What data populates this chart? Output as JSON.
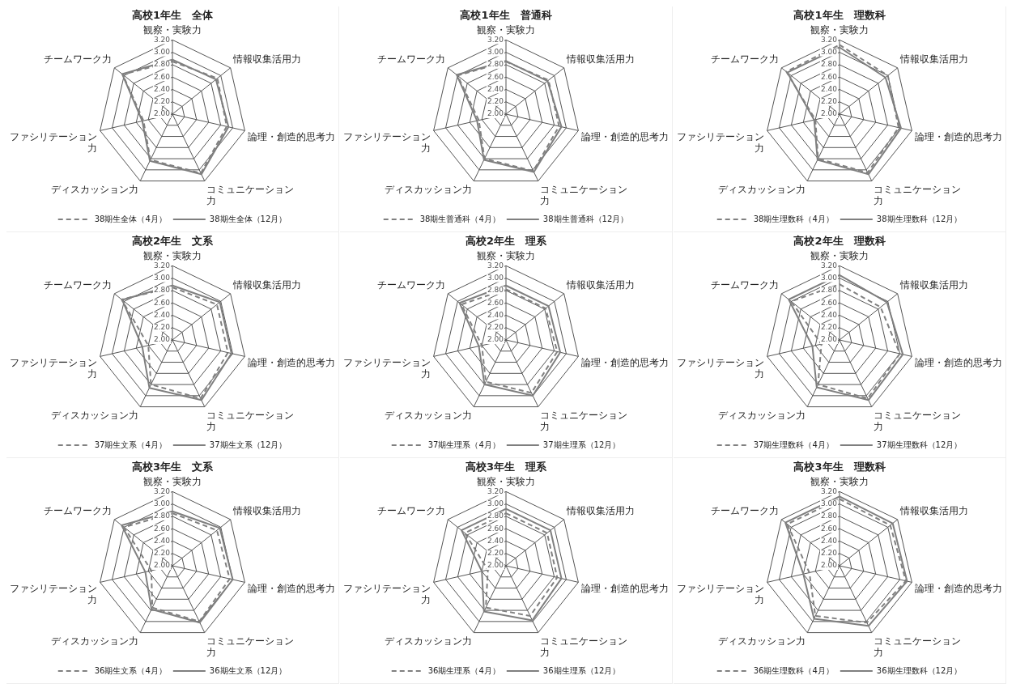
{
  "chart_data": [
    {
      "type": "radar",
      "title": "高校1年生　全体",
      "categories": [
        "観察・実験力",
        "情報収集活用力",
        "論理・創造的思考力",
        "コミュニケーション力",
        "ディスカッション力",
        "ファシリテーション力",
        "チームワーク力"
      ],
      "series": [
        {
          "name": "38期生全体（4月）",
          "color": "#808080",
          "line_style": "dashed",
          "values": [
            2.85,
            2.93,
            2.9,
            3.06,
            2.82,
            2.48,
            3.03
          ]
        },
        {
          "name": "38期生全体（12月）",
          "color": "#7f7f7f",
          "line_style": "solid",
          "values": [
            2.88,
            2.9,
            2.93,
            3.08,
            2.84,
            2.5,
            3.04
          ]
        }
      ],
      "ylim": [
        2,
        3.2
      ],
      "yticks": [
        {
          "value": 2,
          "label": "2.00"
        },
        {
          "value": 2.2,
          "label": "2.20"
        },
        {
          "value": 2.4,
          "label": "2.40"
        },
        {
          "value": 2.6,
          "label": "2.60"
        },
        {
          "value": 2.8,
          "label": "2.80"
        },
        {
          "value": 3,
          "label": "3.00"
        },
        {
          "value": 3.2,
          "label": "3.20"
        }
      ],
      "grid": true,
      "legend": "bottom",
      "marker": "none"
    },
    {
      "type": "radar",
      "title": "高校1年生　普通科",
      "categories": [
        "観察・実験力",
        "情報収集活用力",
        "論理・創造的思考力",
        "コミュニケーション力",
        "ディスカッション力",
        "ファシリテーション力",
        "チームワーク力"
      ],
      "series": [
        {
          "name": "38期生普通科（4月）",
          "color": "#808080",
          "line_style": "dashed",
          "values": [
            2.85,
            2.88,
            2.88,
            3.02,
            2.8,
            2.45,
            3
          ]
        },
        {
          "name": "38期生普通科（12月）",
          "color": "#7f7f7f",
          "line_style": "solid",
          "values": [
            2.86,
            2.86,
            2.92,
            3.04,
            2.82,
            2.48,
            3.02
          ]
        }
      ],
      "ylim": [
        2,
        3.2
      ],
      "yticks": [
        {
          "value": 2,
          "label": "2.00"
        },
        {
          "value": 2.2,
          "label": "2.20"
        },
        {
          "value": 2.4,
          "label": "2.40"
        },
        {
          "value": 2.6,
          "label": "2.60"
        },
        {
          "value": 2.8,
          "label": "2.80"
        },
        {
          "value": 3,
          "label": "3.00"
        },
        {
          "value": 3.2,
          "label": "3.20"
        }
      ],
      "grid": true,
      "legend": "bottom",
      "marker": "none"
    },
    {
      "type": "radar",
      "title": "高校1年生　理数科",
      "categories": [
        "観察・実験力",
        "情報収集活用力",
        "論理・創造的思考力",
        "コミュニケーション力",
        "ディスカッション力",
        "ファシリテーション力",
        "チームワーク力"
      ],
      "series": [
        {
          "name": "38期生理数科（4月）",
          "color": "#808080",
          "line_style": "dashed",
          "values": [
            3.12,
            3,
            2.98,
            3.05,
            2.8,
            2.4,
            3.1
          ]
        },
        {
          "name": "38期生理数科（12月）",
          "color": "#7f7f7f",
          "line_style": "solid",
          "values": [
            3.08,
            2.95,
            3.02,
            3.08,
            2.82,
            2.42,
            3.08
          ]
        }
      ],
      "ylim": [
        2,
        3.2
      ],
      "yticks": [
        {
          "value": 2,
          "label": "2.00"
        },
        {
          "value": 2.2,
          "label": "2.20"
        },
        {
          "value": 2.4,
          "label": "2.40"
        },
        {
          "value": 2.6,
          "label": "2.60"
        },
        {
          "value": 2.8,
          "label": "2.80"
        },
        {
          "value": 3,
          "label": "3.00"
        },
        {
          "value": 3.2,
          "label": "3.20"
        }
      ],
      "grid": true,
      "legend": "bottom",
      "marker": "none"
    },
    {
      "type": "radar",
      "title": "高校2年生　文系",
      "categories": [
        "観察・実験力",
        "情報収集活用力",
        "論理・創造的思考力",
        "コミュニケーション力",
        "ディスカッション力",
        "ファシリテーション力",
        "チームワーク力"
      ],
      "series": [
        {
          "name": "37期生文系（4月）",
          "color": "#808080",
          "line_style": "dashed",
          "values": [
            2.85,
            2.92,
            2.92,
            3.05,
            2.8,
            2.4,
            3.05
          ]
        },
        {
          "name": "37期生文系（12月）",
          "color": "#7f7f7f",
          "line_style": "solid",
          "values": [
            2.88,
            2.98,
            2.98,
            3.08,
            2.86,
            2.5,
            3.04
          ]
        }
      ],
      "ylim": [
        2,
        3.2
      ],
      "yticks": [
        {
          "value": 2,
          "label": "2.00"
        },
        {
          "value": 2.2,
          "label": "2.20"
        },
        {
          "value": 2.4,
          "label": "2.40"
        },
        {
          "value": 2.6,
          "label": "2.60"
        },
        {
          "value": 2.8,
          "label": "2.80"
        },
        {
          "value": 3,
          "label": "3.00"
        },
        {
          "value": 3.2,
          "label": "3.20"
        }
      ],
      "grid": true,
      "legend": "bottom",
      "marker": "none"
    },
    {
      "type": "radar",
      "title": "高校2年生　理系",
      "categories": [
        "観察・実験力",
        "情報収集活用力",
        "論理・創造的思考力",
        "コミュニケーション力",
        "ディスカッション力",
        "ファシリテーション力",
        "チームワーク力"
      ],
      "series": [
        {
          "name": "37期生理系（4月）",
          "color": "#808080",
          "line_style": "dashed",
          "values": [
            2.82,
            2.82,
            2.85,
            2.95,
            2.75,
            2.4,
            2.92
          ]
        },
        {
          "name": "37期生理系（12月）",
          "color": "#7f7f7f",
          "line_style": "solid",
          "values": [
            2.88,
            2.88,
            2.9,
            3,
            2.8,
            2.45,
            2.96
          ]
        }
      ],
      "ylim": [
        2,
        3.2
      ],
      "yticks": [
        {
          "value": 2,
          "label": "2.00"
        },
        {
          "value": 2.2,
          "label": "2.20"
        },
        {
          "value": 2.4,
          "label": "2.40"
        },
        {
          "value": 2.6,
          "label": "2.60"
        },
        {
          "value": 2.8,
          "label": "2.80"
        },
        {
          "value": 3,
          "label": "3.00"
        },
        {
          "value": 3.2,
          "label": "3.20"
        }
      ],
      "grid": true,
      "legend": "bottom",
      "marker": "none"
    },
    {
      "type": "radar",
      "title": "高校2年生　理数科",
      "categories": [
        "観察・実験力",
        "情報収集活用力",
        "論理・創造的思考力",
        "コミュニケーション力",
        "ディスカッション力",
        "ファシリテーション力",
        "チームワーク力"
      ],
      "series": [
        {
          "name": "37期生理数科（4月）",
          "color": "#808080",
          "line_style": "dashed",
          "values": [
            2.9,
            2.85,
            3,
            3.05,
            2.8,
            2.3,
            3
          ]
        },
        {
          "name": "37期生理数科（12月）",
          "color": "#7f7f7f",
          "line_style": "solid",
          "values": [
            3.05,
            2.98,
            3.05,
            3.08,
            2.85,
            2.45,
            3.05
          ]
        }
      ],
      "ylim": [
        2,
        3.2
      ],
      "yticks": [
        {
          "value": 2,
          "label": "2.00"
        },
        {
          "value": 2.2,
          "label": "2.20"
        },
        {
          "value": 2.4,
          "label": "2.40"
        },
        {
          "value": 2.6,
          "label": "2.60"
        },
        {
          "value": 2.8,
          "label": "2.80"
        },
        {
          "value": 3,
          "label": "3.00"
        },
        {
          "value": 3.2,
          "label": "3.20"
        }
      ],
      "grid": true,
      "legend": "bottom",
      "marker": "none"
    },
    {
      "type": "radar",
      "title": "高校3年生　文系",
      "categories": [
        "観察・実験力",
        "情報収集活用力",
        "論理・創造的思考力",
        "コミュニケーション力",
        "ディスカッション力",
        "ファシリテーション力",
        "チームワーク力"
      ],
      "series": [
        {
          "name": "36期生文系（4月）",
          "color": "#808080",
          "line_style": "dashed",
          "values": [
            2.85,
            2.92,
            2.95,
            3,
            2.75,
            2.35,
            3
          ]
        },
        {
          "name": "36期生文系（12月）",
          "color": "#7f7f7f",
          "line_style": "solid",
          "values": [
            2.88,
            2.98,
            3,
            3.02,
            2.78,
            2.45,
            3.05
          ]
        }
      ],
      "ylim": [
        2,
        3.2
      ],
      "yticks": [
        {
          "value": 2,
          "label": "2.00"
        },
        {
          "value": 2.2,
          "label": "2.20"
        },
        {
          "value": 2.4,
          "label": "2.40"
        },
        {
          "value": 2.6,
          "label": "2.60"
        },
        {
          "value": 2.8,
          "label": "2.80"
        },
        {
          "value": 3,
          "label": "3.00"
        },
        {
          "value": 3.2,
          "label": "3.20"
        }
      ],
      "grid": true,
      "legend": "bottom",
      "marker": "none"
    },
    {
      "type": "radar",
      "title": "高校3年生　理系",
      "categories": [
        "観察・実験力",
        "情報収集活用力",
        "論理・創造的思考力",
        "コミュニケーション力",
        "ディスカッション力",
        "ファシリテーション力",
        "チームワーク力"
      ],
      "series": [
        {
          "name": "36期生理系（4月）",
          "color": "#808080",
          "line_style": "dashed",
          "values": [
            2.85,
            2.85,
            2.85,
            2.9,
            2.75,
            2.3,
            2.85
          ]
        },
        {
          "name": "36期生理系（12月）",
          "color": "#7f7f7f",
          "line_style": "solid",
          "values": [
            2.92,
            2.92,
            2.92,
            2.98,
            2.82,
            2.4,
            2.92
          ]
        }
      ],
      "ylim": [
        2,
        3.2
      ],
      "yticks": [
        {
          "value": 2,
          "label": "2.00"
        },
        {
          "value": 2.2,
          "label": "2.20"
        },
        {
          "value": 2.4,
          "label": "2.40"
        },
        {
          "value": 2.6,
          "label": "2.60"
        },
        {
          "value": 2.8,
          "label": "2.80"
        },
        {
          "value": 3,
          "label": "3.00"
        },
        {
          "value": 3.2,
          "label": "3.20"
        }
      ],
      "grid": true,
      "legend": "bottom",
      "marker": "none"
    },
    {
      "type": "radar",
      "title": "高校3年生　理数科",
      "categories": [
        "観察・実験力",
        "情報収集活用力",
        "論理・創造的思考力",
        "コミュニケーション力",
        "ディスカッション力",
        "ファシリテーション力",
        "チームワーク力"
      ],
      "series": [
        {
          "name": "36期生理数科（4月）",
          "color": "#808080",
          "line_style": "dashed",
          "values": [
            3.08,
            3.05,
            3.1,
            3.02,
            2.9,
            2.5,
            3.08
          ]
        },
        {
          "name": "36期生理数科（12月）",
          "color": "#7f7f7f",
          "line_style": "solid",
          "values": [
            3.12,
            3.1,
            3.12,
            3.08,
            2.95,
            2.6,
            3.12
          ]
        }
      ],
      "ylim": [
        2,
        3.2
      ],
      "yticks": [
        {
          "value": 2,
          "label": "2.00"
        },
        {
          "value": 2.2,
          "label": "2.20"
        },
        {
          "value": 2.4,
          "label": "2.40"
        },
        {
          "value": 2.6,
          "label": "2.60"
        },
        {
          "value": 2.8,
          "label": "2.80"
        },
        {
          "value": 3,
          "label": "3.00"
        },
        {
          "value": 3.2,
          "label": "3.20"
        }
      ],
      "grid": true,
      "legend": "bottom",
      "marker": "none"
    }
  ]
}
